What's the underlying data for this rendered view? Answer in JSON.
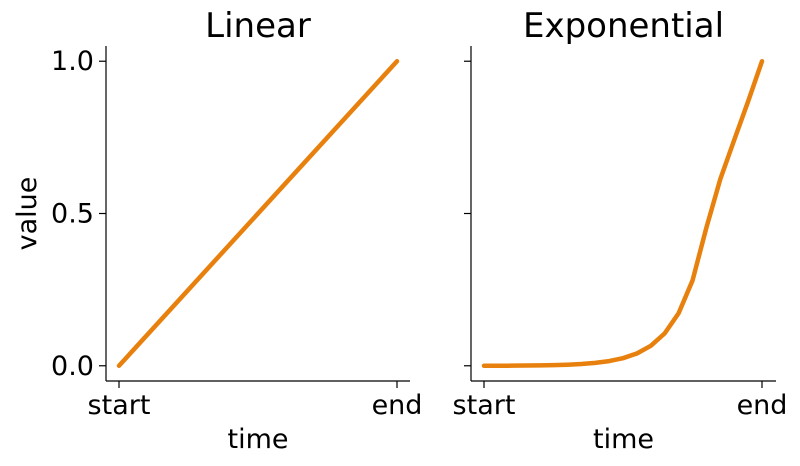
{
  "colors": {
    "series": "#e8800e"
  },
  "chart_data": [
    {
      "type": "line",
      "title": "Linear",
      "xlabel": "time",
      "ylabel": "value",
      "x_tick_labels": [
        "start",
        "end"
      ],
      "y_ticks": [
        0.0,
        0.5,
        1.0
      ],
      "y_tick_labels": [
        "0.0",
        "0.5",
        "1.0"
      ],
      "ylim": [
        -0.05,
        1.05
      ],
      "x": [
        0,
        1
      ],
      "series": [
        {
          "values": [
            0.0,
            1.0
          ]
        }
      ]
    },
    {
      "type": "line",
      "title": "Exponential",
      "xlabel": "time",
      "ylabel": "",
      "x_tick_labels": [
        "start",
        "end"
      ],
      "y_ticks": [
        0.0,
        0.5,
        1.0
      ],
      "y_tick_labels": [
        "",
        "",
        ""
      ],
      "ylim": [
        -0.05,
        1.05
      ],
      "x": [
        0,
        0.05,
        0.1,
        0.15,
        0.2,
        0.25,
        0.3,
        0.35,
        0.4,
        0.45,
        0.5,
        0.55,
        0.6,
        0.65,
        0.7,
        0.75,
        0.8,
        0.85,
        0.9,
        0.95,
        1.0
      ],
      "series": [
        {
          "values": [
            0.0,
            0.0001,
            0.0003,
            0.0007,
            0.0012,
            0.0021,
            0.0035,
            0.0058,
            0.0094,
            0.0153,
            0.0249,
            0.0404,
            0.0656,
            0.1064,
            0.1725,
            0.2798,
            0.4536,
            0.6128,
            0.7412,
            0.868,
            1.0
          ]
        }
      ]
    }
  ]
}
